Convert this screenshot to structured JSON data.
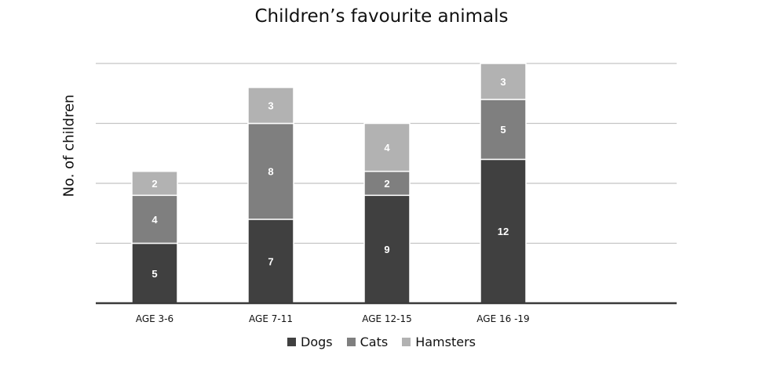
{
  "chart_data": {
    "type": "bar",
    "stacked": true,
    "title": "Children’s favourite animals",
    "xlabel": "",
    "ylabel": "No. of children",
    "categories": [
      "AGE 3-6",
      "AGE 7-11",
      "AGE 12-15",
      "AGE 16 -19"
    ],
    "series": [
      {
        "name": "Dogs",
        "values": [
          5,
          7,
          9,
          12
        ],
        "color": "#404040"
      },
      {
        "name": "Cats",
        "values": [
          4,
          8,
          2,
          5
        ],
        "color": "#7f7f7f"
      },
      {
        "name": "Hamsters",
        "values": [
          2,
          3,
          4,
          3
        ],
        "color": "#b2b2b2"
      }
    ],
    "ylim": [
      0,
      20
    ],
    "grid": true,
    "legend": "bottom"
  }
}
